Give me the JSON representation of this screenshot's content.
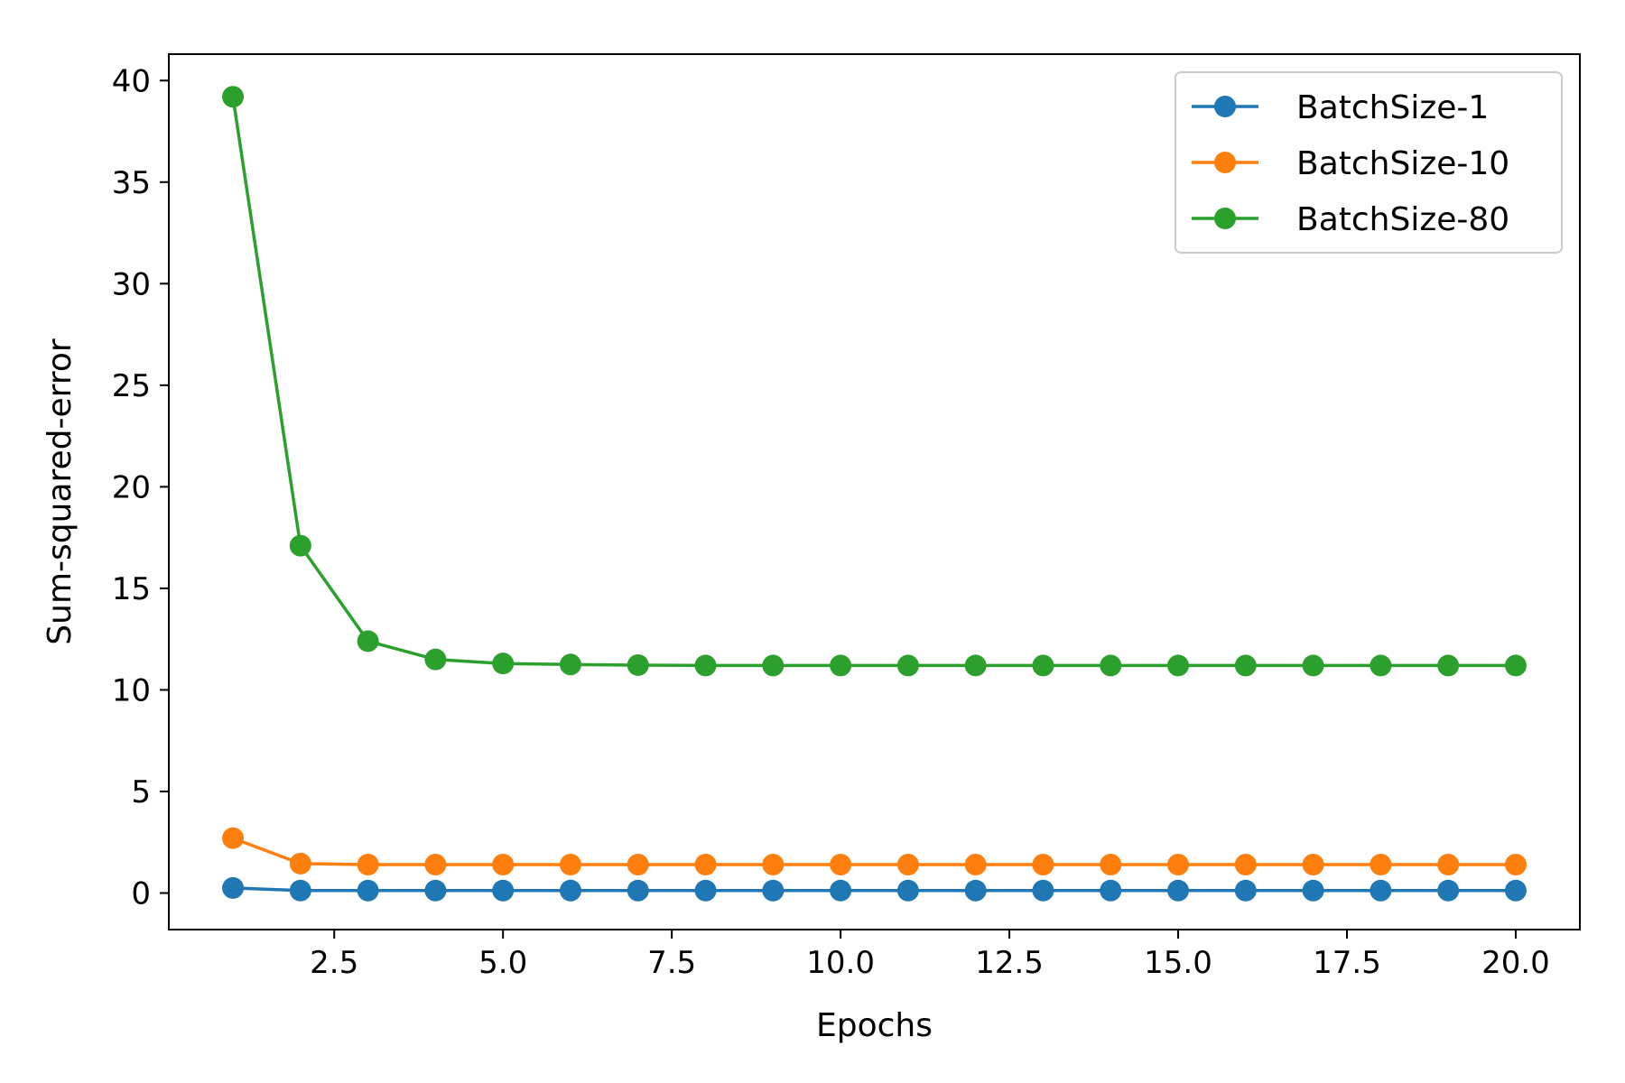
{
  "chart_data": {
    "type": "line",
    "title": "",
    "xlabel": "Epochs",
    "ylabel": "Sum-squared-error",
    "xlim": [
      0.05,
      20.95
    ],
    "ylim": [
      -1.8,
      41.3
    ],
    "x_ticks": [
      2.5,
      5.0,
      7.5,
      10.0,
      12.5,
      15.0,
      17.5,
      20.0
    ],
    "x_tick_labels": [
      "2.5",
      "5.0",
      "7.5",
      "10.0",
      "12.5",
      "15.0",
      "17.5",
      "20.0"
    ],
    "y_ticks": [
      0,
      5,
      10,
      15,
      20,
      25,
      30,
      35,
      40
    ],
    "y_tick_labels": [
      "0",
      "5",
      "10",
      "15",
      "20",
      "25",
      "30",
      "35",
      "40"
    ],
    "grid": false,
    "legend_position": "top-right",
    "x": [
      1,
      2,
      3,
      4,
      5,
      6,
      7,
      8,
      9,
      10,
      11,
      12,
      13,
      14,
      15,
      16,
      17,
      18,
      19,
      20
    ],
    "series": [
      {
        "name": "BatchSize-1",
        "color": "#1f77b4",
        "marker": "circle",
        "values": [
          0.25,
          0.12,
          0.12,
          0.12,
          0.12,
          0.12,
          0.12,
          0.12,
          0.12,
          0.12,
          0.12,
          0.12,
          0.12,
          0.12,
          0.12,
          0.12,
          0.12,
          0.12,
          0.12,
          0.12
        ]
      },
      {
        "name": "BatchSize-10",
        "color": "#ff7f0e",
        "marker": "circle",
        "values": [
          2.7,
          1.45,
          1.4,
          1.4,
          1.4,
          1.4,
          1.4,
          1.4,
          1.4,
          1.4,
          1.4,
          1.4,
          1.4,
          1.4,
          1.4,
          1.4,
          1.4,
          1.4,
          1.4,
          1.4
        ]
      },
      {
        "name": "BatchSize-80",
        "color": "#2ca02c",
        "marker": "circle",
        "values": [
          39.2,
          17.1,
          12.4,
          11.5,
          11.3,
          11.25,
          11.22,
          11.2,
          11.2,
          11.2,
          11.2,
          11.2,
          11.2,
          11.2,
          11.2,
          11.2,
          11.2,
          11.2,
          11.2,
          11.2
        ]
      }
    ]
  }
}
